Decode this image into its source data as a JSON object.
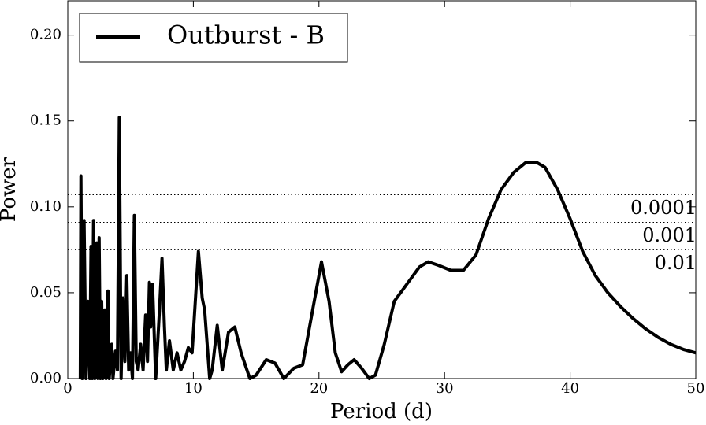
{
  "chart_data": {
    "type": "line",
    "xlabel": "Period (d)",
    "ylabel": "Power",
    "xlim": [
      0,
      50
    ],
    "ylim": [
      0,
      0.22
    ],
    "xticks": [
      0,
      10,
      20,
      30,
      40,
      50
    ],
    "yticks": [
      {
        "value": 0,
        "label": "0.00"
      },
      {
        "value": 0.05,
        "label": "0.05"
      },
      {
        "value": 0.1,
        "label": "0.10"
      },
      {
        "value": 0.15,
        "label": "0.15"
      },
      {
        "value": 0.2,
        "label": "0.20"
      }
    ],
    "legend": "upper left",
    "thresholds": [
      {
        "value": 0.107,
        "label": "0.0001"
      },
      {
        "value": 0.091,
        "label": "0.001"
      },
      {
        "value": 0.075,
        "label": "0.01"
      }
    ],
    "series": [
      {
        "name": "Outburst - B",
        "color": "#000000",
        "x": [
          1.0,
          1.05,
          1.15,
          1.3,
          1.45,
          1.6,
          1.75,
          1.85,
          1.95,
          2.05,
          2.15,
          2.3,
          2.4,
          2.5,
          2.6,
          2.7,
          2.8,
          2.95,
          3.05,
          3.2,
          3.3,
          3.5,
          3.6,
          3.8,
          3.95,
          4.1,
          4.25,
          4.4,
          4.55,
          4.7,
          4.85,
          5.0,
          5.15,
          5.3,
          5.45,
          5.6,
          5.8,
          6.0,
          6.2,
          6.35,
          6.5,
          6.6,
          6.75,
          7.0,
          7.3,
          7.5,
          7.7,
          7.85,
          8.1,
          8.4,
          8.7,
          9.0,
          9.3,
          9.6,
          9.9,
          10.4,
          10.7,
          10.9,
          11.3,
          11.5,
          11.9,
          12.3,
          12.8,
          13.3,
          13.8,
          14.5,
          15.0,
          15.8,
          16.5,
          17.2,
          18.0,
          18.7,
          19.5,
          20.2,
          20.8,
          21.3,
          21.8,
          22.3,
          22.8,
          23.4,
          24.0,
          24.5,
          25.2,
          26.0,
          27.0,
          28.0,
          28.7,
          29.5,
          30.5,
          31.5,
          32.5,
          33.5,
          34.5,
          35.5,
          36.5,
          37.3,
          38,
          39,
          40,
          41,
          42,
          43,
          44,
          45,
          46,
          47,
          48,
          49,
          50
        ],
        "values": [
          0.0,
          0.118,
          0.0,
          0.092,
          0.0,
          0.045,
          0.0,
          0.077,
          0.0,
          0.092,
          0.0,
          0.079,
          0.0,
          0.082,
          0.0,
          0.045,
          0.0,
          0.04,
          0.0,
          0.051,
          0.0,
          0.02,
          0.0,
          0.016,
          0.005,
          0.152,
          0.0,
          0.047,
          0.01,
          0.06,
          0.005,
          0.015,
          0.0,
          0.095,
          0.01,
          0.005,
          0.02,
          0.005,
          0.037,
          0.01,
          0.056,
          0.03,
          0.055,
          0.0,
          0.04,
          0.07,
          0.03,
          0.005,
          0.022,
          0.005,
          0.015,
          0.005,
          0.01,
          0.018,
          0.015,
          0.074,
          0.047,
          0.04,
          0.0,
          0.005,
          0.031,
          0.005,
          0.027,
          0.03,
          0.015,
          0.0,
          0.002,
          0.011,
          0.009,
          0.0,
          0.006,
          0.008,
          0.04,
          0.068,
          0.045,
          0.015,
          0.004,
          0.008,
          0.011,
          0.006,
          0.0,
          0.002,
          0.02,
          0.045,
          0.055,
          0.065,
          0.068,
          0.066,
          0.063,
          0.063,
          0.072,
          0.093,
          0.11,
          0.12,
          0.126,
          0.126,
          0.123,
          0.11,
          0.093,
          0.074,
          0.06,
          0.05,
          0.042,
          0.035,
          0.029,
          0.024,
          0.02,
          0.017,
          0.015
        ]
      }
    ]
  }
}
